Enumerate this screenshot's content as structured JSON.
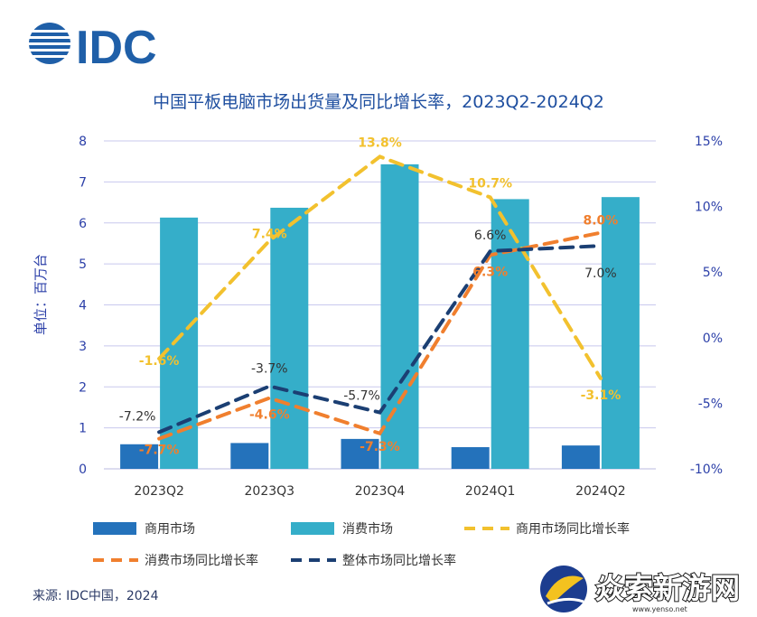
{
  "header": {
    "logo_text": "IDC",
    "logo_color": "#1f5fa8"
  },
  "chart_data": {
    "type": "bar+line",
    "title": "中国平板电脑市场出货量及同比增长率，2023Q2-2024Q2",
    "ylabel": "单位：百万台",
    "ylim": [
      0,
      8
    ],
    "y2lim": [
      -10,
      15
    ],
    "yticks": [
      "0",
      "1",
      "2",
      "3",
      "4",
      "5",
      "6",
      "7",
      "8"
    ],
    "y2ticks": [
      "-10%",
      "-5%",
      "0%",
      "5%",
      "10%",
      "15%"
    ],
    "categories": [
      "2023Q2",
      "2023Q3",
      "2023Q4",
      "2024Q1",
      "2024Q2"
    ],
    "bars": [
      {
        "name": "商用市场",
        "color": "#2472bb",
        "values": [
          0.6,
          0.63,
          0.73,
          0.53,
          0.57
        ]
      },
      {
        "name": "消费市场",
        "color": "#35aec9",
        "values": [
          6.13,
          6.37,
          7.43,
          6.58,
          6.63
        ]
      }
    ],
    "lines": [
      {
        "name": "商用市场同比增长率",
        "color": "#f2c12e",
        "label_color": "#f2c12e",
        "values": [
          -1.6,
          7.4,
          13.8,
          10.7,
          -3.1
        ],
        "labels": [
          "-1.6%",
          "7.4%",
          "13.8%",
          "10.7%",
          "-3.1%"
        ]
      },
      {
        "name": "消费市场同比增长率",
        "color": "#f07f2e",
        "label_color": "#f07f2e",
        "values": [
          -7.7,
          -4.6,
          -7.3,
          6.3,
          8.0
        ],
        "labels": [
          "-7.7%",
          "-4.6%",
          "-7.3%",
          "6.3%",
          "8.0%"
        ]
      },
      {
        "name": "整体市场同比增长率",
        "color": "#1b3f73",
        "label_color": "#333333",
        "values": [
          -7.2,
          -3.7,
          -5.7,
          6.6,
          7.0
        ],
        "labels": [
          "-7.2%",
          "-3.7%",
          "-5.7%",
          "6.6%",
          "7.0%"
        ]
      }
    ],
    "source": "来源: IDC中国，2024"
  },
  "watermark": {
    "text": "焱索新游网",
    "url_text": "www.yenso.net"
  }
}
